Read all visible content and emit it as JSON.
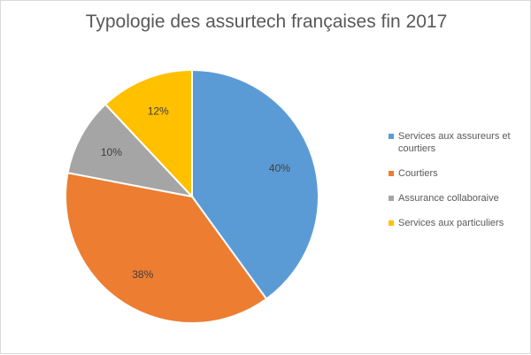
{
  "chart_data": {
    "type": "pie",
    "title": "Typologie des assurtech françaises fin 2017",
    "start_angle_deg": 0,
    "direction": "clockwise",
    "legend_position": "right",
    "slices": [
      {
        "name": "Services aux assureurs et courtiers",
        "value": 40,
        "label": "40%",
        "color": "#5b9bd5"
      },
      {
        "name": "Courtiers",
        "value": 38,
        "label": "38%",
        "color": "#ed7d31"
      },
      {
        "name": "Assurance collaboraive",
        "value": 10,
        "label": "10%",
        "color": "#a5a5a5"
      },
      {
        "name": "Services aux particuliers",
        "value": 12,
        "label": "12%",
        "color": "#ffc000"
      }
    ]
  }
}
